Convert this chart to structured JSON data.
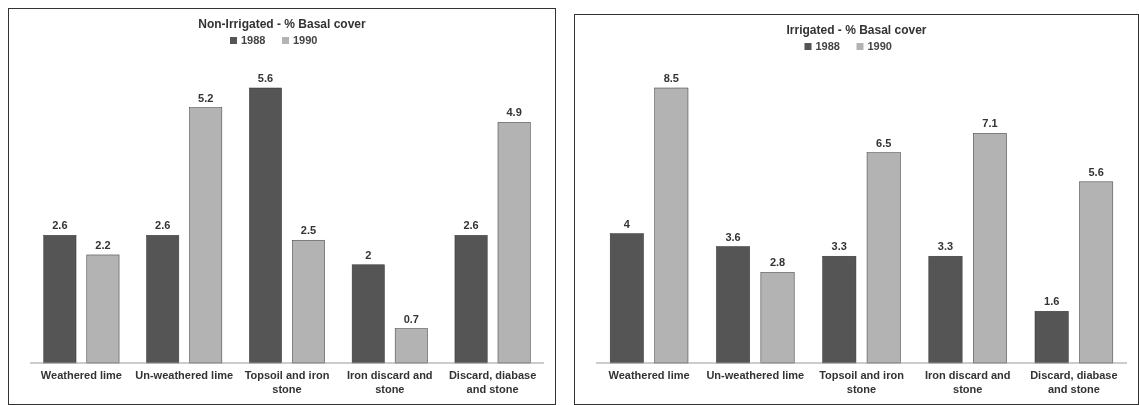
{
  "chart_data": [
    {
      "type": "bar",
      "title": "Non-Irrigated -  % Basal cover",
      "categories": [
        "Weathered lime",
        "Un-weathered lime",
        "Topsoil and iron stone",
        "Iron discard and stone",
        "Discard, diabase and stone"
      ],
      "series": [
        {
          "name": "1988",
          "color": "#555555",
          "values": [
            2.6,
            2.6,
            5.6,
            2,
            2.6
          ]
        },
        {
          "name": "1990",
          "color": "#b3b3b3",
          "values": [
            2.2,
            5.2,
            2.5,
            0.7,
            4.9
          ]
        }
      ],
      "data_labels": true,
      "legend": "top",
      "grid": false
    },
    {
      "type": "bar",
      "title": "Irrigated -  % Basal cover",
      "categories": [
        "Weathered lime",
        "Un-weathered lime",
        "Topsoil and iron stone",
        "Iron discard and stone",
        "Discard, diabase and stone"
      ],
      "series": [
        {
          "name": "1988",
          "color": "#555555",
          "values": [
            4,
            3.6,
            3.3,
            3.3,
            1.6
          ]
        },
        {
          "name": "1990",
          "color": "#b3b3b3",
          "values": [
            8.5,
            2.8,
            6.5,
            7.1,
            5.6
          ]
        }
      ],
      "data_labels": true,
      "legend": "top",
      "grid": false
    }
  ]
}
